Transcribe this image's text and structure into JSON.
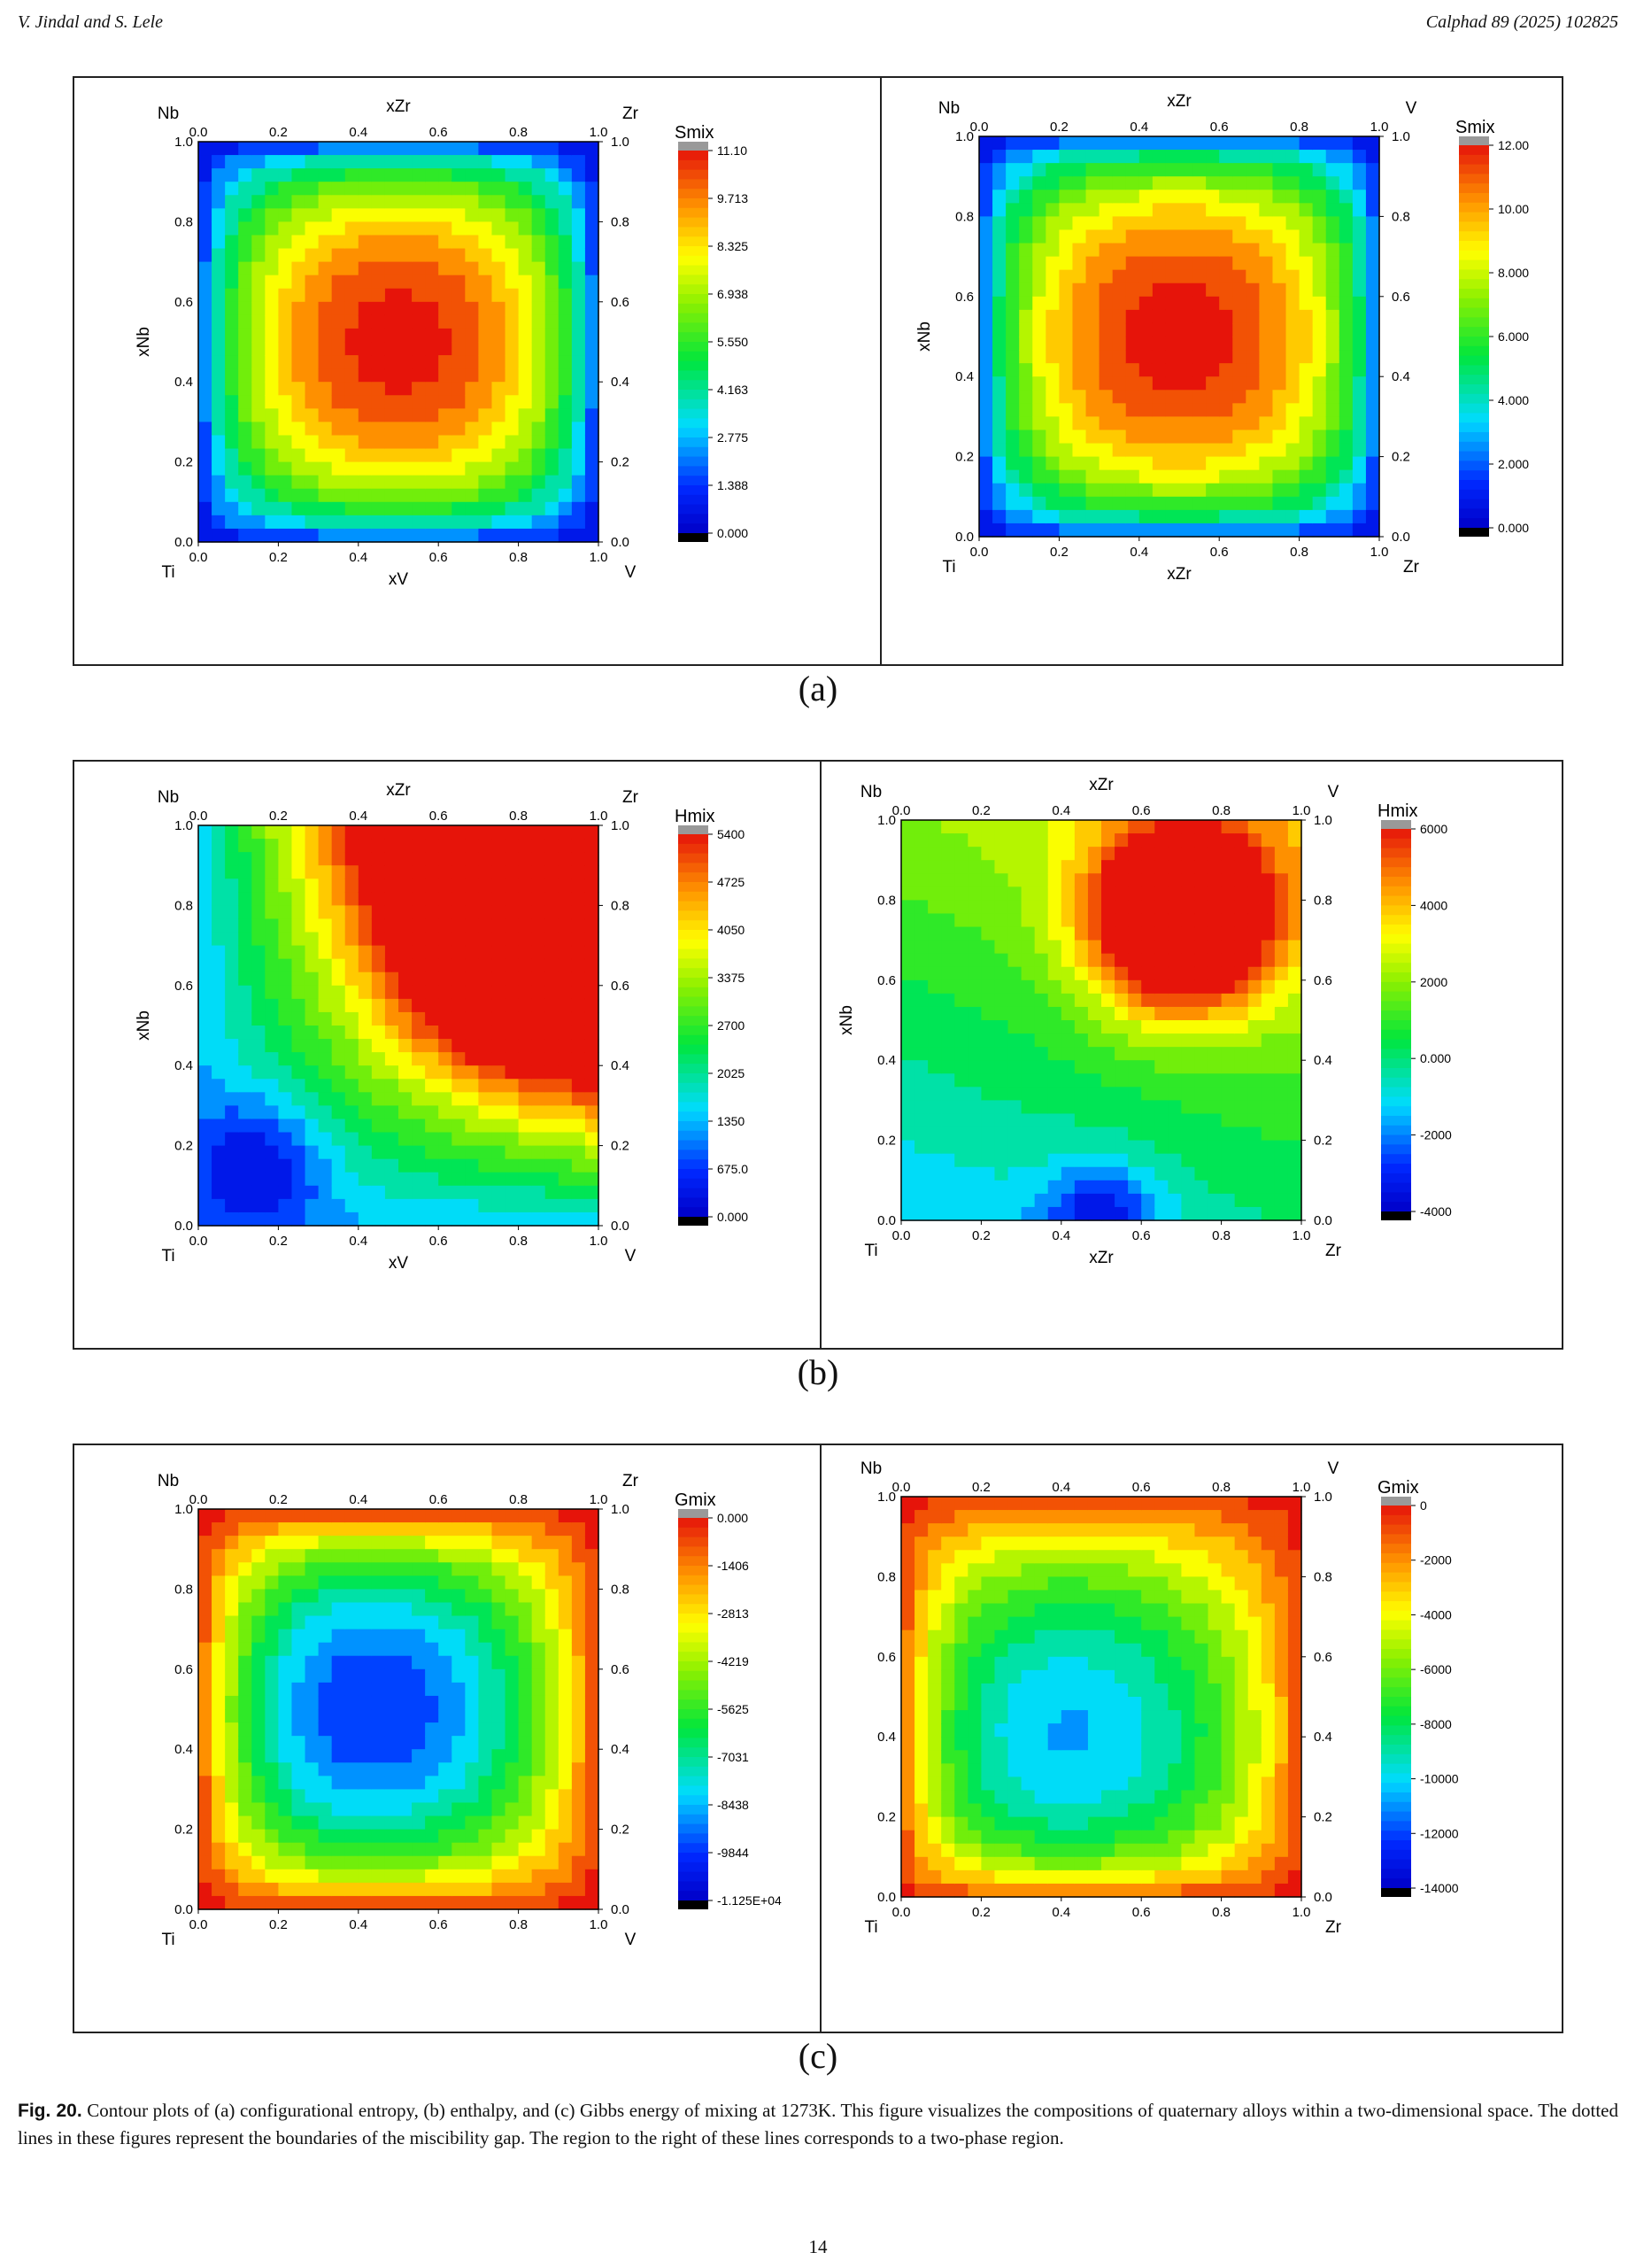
{
  "header": {
    "authors": "V. Jindal and S. Lele",
    "journal": "Calphad 89 (2025) 102825"
  },
  "panels": [
    {
      "label": "(a)",
      "plots": [
        {
          "top_label": "xZr",
          "bottom_label": "xV",
          "left_label": "xNb",
          "corner_tl": "Nb",
          "corner_tr": "Zr",
          "corner_bl": "Ti",
          "corner_br": "V",
          "scale_title": "Smix",
          "scale_ticks": [
            "11.10",
            "9.713",
            "8.325",
            "6.938",
            "5.550",
            "4.163",
            "2.775",
            "1.388",
            "0.000"
          ],
          "field": "smixA"
        },
        {
          "top_label": "xZr",
          "bottom_label": "xZr",
          "left_label": "xNb",
          "corner_tl": "Nb",
          "corner_tr": "V",
          "corner_bl": "Ti",
          "corner_br": "Zr",
          "scale_title": "Smix",
          "scale_ticks": [
            "12.00",
            "10.00",
            "8.000",
            "6.000",
            "4.000",
            "2.000",
            "0.000"
          ],
          "field": "smixB"
        }
      ]
    },
    {
      "label": "(b)",
      "plots": [
        {
          "top_label": "xZr",
          "bottom_label": "xV",
          "left_label": "xNb",
          "corner_tl": "Nb",
          "corner_tr": "Zr",
          "corner_bl": "Ti",
          "corner_br": "V",
          "scale_title": "Hmix",
          "scale_ticks": [
            "5400",
            "4725",
            "4050",
            "3375",
            "2700",
            "2025",
            "1350",
            "675.0",
            "0.000"
          ],
          "field": "hmixA"
        },
        {
          "top_label": "xZr",
          "bottom_label": "xZr",
          "left_label": "xNb",
          "corner_tl": "Nb",
          "corner_tr": "V",
          "corner_bl": "Ti",
          "corner_br": "Zr",
          "scale_title": "Hmix",
          "scale_ticks": [
            "6000",
            "4000",
            "2000",
            "0.000",
            "-2000",
            "-4000"
          ],
          "field": "hmixB"
        }
      ]
    },
    {
      "label": "(c)",
      "plots": [
        {
          "top_label": "",
          "bottom_label": "",
          "left_label": "",
          "corner_tl": "Nb",
          "corner_tr": "Zr",
          "corner_bl": "Ti",
          "corner_br": "V",
          "scale_title": "Gmix",
          "scale_ticks": [
            "0.000",
            "-1406",
            "-2813",
            "-4219",
            "-5625",
            "-7031",
            "-8438",
            "-9844",
            "-1.125E+04"
          ],
          "field": "gmixA"
        },
        {
          "top_label": "",
          "bottom_label": "",
          "left_label": "",
          "corner_tl": "Nb",
          "corner_tr": "V",
          "corner_bl": "Ti",
          "corner_br": "Zr",
          "scale_title": "Gmix",
          "scale_ticks": [
            "0",
            "-2000",
            "-4000",
            "-6000",
            "-8000",
            "-10000",
            "-12000",
            "-14000"
          ],
          "field": "gmixB"
        }
      ]
    }
  ],
  "axis_ticks": [
    "0.0",
    "0.2",
    "0.4",
    "0.6",
    "0.8",
    "1.0"
  ],
  "caption": {
    "fig": "Fig. 20.",
    "text": "Contour plots of (a) configurational entropy, (b) enthalpy, and (c) Gibbs energy of mixing at 1273K. This figure visualizes the compositions of quaternary alloys within a two-dimensional space. The dotted lines in these figures represent the boundaries of the miscibility gap. The region to the right of these lines corresponds to a two-phase region."
  },
  "page_number": "14"
}
